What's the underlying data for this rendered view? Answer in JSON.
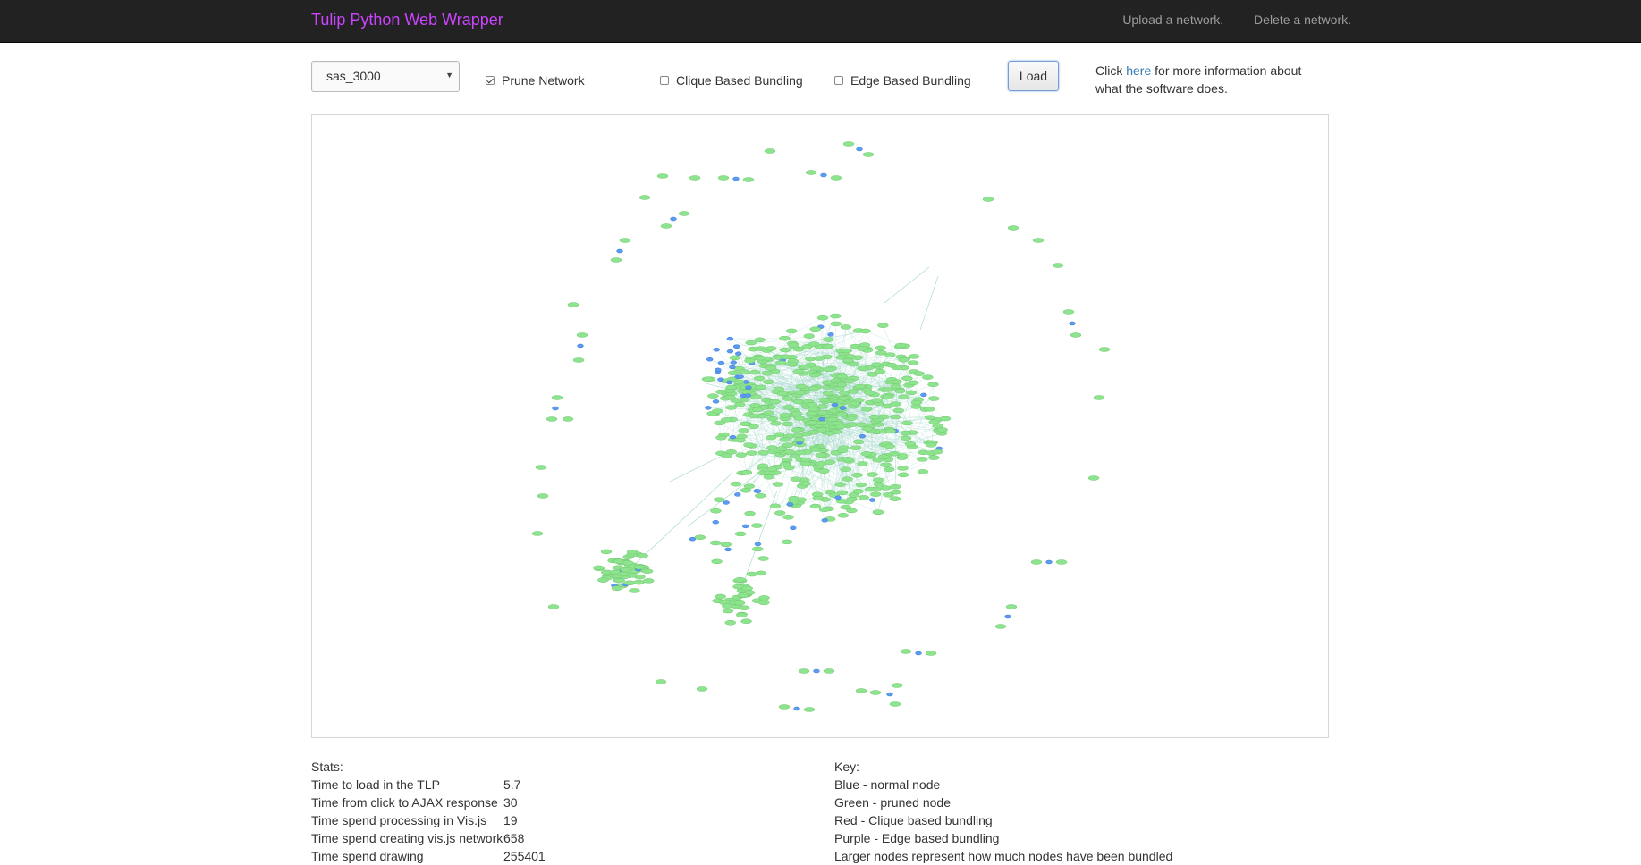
{
  "navbar": {
    "brand": "Tulip Python Web Wrapper",
    "links": [
      "Upload a network.",
      "Delete a network."
    ],
    "background": "#222222",
    "brand_color": "#cc44ff"
  },
  "controls": {
    "network_select": {
      "value": "sas_3000"
    },
    "prune": {
      "label": "Prune Network",
      "checked": true
    },
    "clique": {
      "label": "Clique Based Bundling",
      "checked": false
    },
    "edge": {
      "label": "Edge Based Bundling",
      "checked": false
    },
    "load_label": "Load",
    "info_prefix": "Click ",
    "info_link": "here",
    "info_suffix": " for more information about what the software does."
  },
  "graph": {
    "node_colors": {
      "normal": "#5b9bf0",
      "pruned": "#8ee48e",
      "edge": "#9fd6c9"
    }
  },
  "stats": {
    "title": "Stats:",
    "rows": [
      {
        "label": "Time to load in the TLP",
        "value": "5.7"
      },
      {
        "label": "Time from click to AJAX response",
        "value": "30"
      },
      {
        "label": "Time spend processing in Vis.js",
        "value": "19"
      },
      {
        "label": "Time spend creating vis.js network",
        "value": "658"
      },
      {
        "label": "Time spend drawing",
        "value": "255401"
      }
    ]
  },
  "key": {
    "title": "Key:",
    "items": [
      "Blue - normal node",
      "Green - pruned node",
      "Red - Clique based bundling",
      "Purple - Edge based bundling",
      "Larger nodes represent how much nodes have been bundled"
    ]
  }
}
